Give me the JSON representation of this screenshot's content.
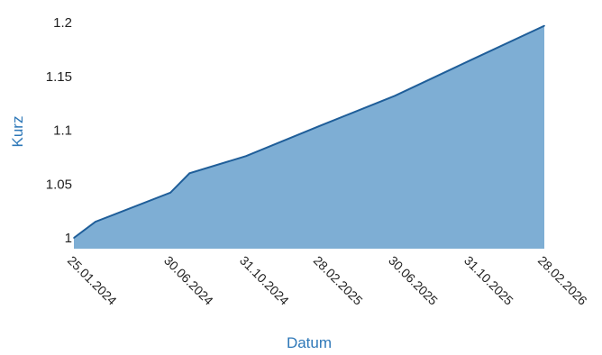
{
  "chart_data": {
    "type": "area",
    "xlabel": "Datum",
    "ylabel": "Kurz",
    "ylim": [
      0.99,
      1.2
    ],
    "y_ticks": [
      "1",
      "1.05",
      "1.1",
      "1.15",
      "1.2"
    ],
    "y_tick_values": [
      1.0,
      1.05,
      1.1,
      1.15,
      1.2
    ],
    "x_ticks": [
      "25.01.2024",
      "30.06.2024",
      "31.10.2024",
      "28.02.2025",
      "30.06.2025",
      "31.10.2025",
      "28.02.2026"
    ],
    "x_tick_dates": [
      "2024-01-25",
      "2024-06-30",
      "2024-10-31",
      "2025-02-28",
      "2025-06-30",
      "2025-10-31",
      "2026-02-28"
    ],
    "xlim": [
      "2024-01-25",
      "2026-02-28"
    ],
    "grid": false,
    "series": [
      {
        "x": [
          "2024-01-25",
          "2024-02-29",
          "2024-06-30",
          "2024-07-31",
          "2024-10-31",
          "2025-02-28",
          "2025-06-30",
          "2025-10-31",
          "2026-02-28"
        ],
        "values": [
          1.0,
          1.015,
          1.042,
          1.06,
          1.076,
          1.104,
          1.132,
          1.165,
          1.197
        ]
      }
    ],
    "colors": {
      "fill": "#7eaed4",
      "line": "#1f5e99",
      "axis_title": "#2e78b8"
    }
  }
}
